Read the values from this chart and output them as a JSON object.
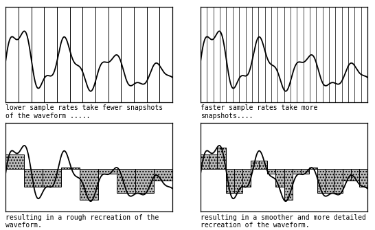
{
  "fig_width": 5.46,
  "fig_height": 3.35,
  "dpi": 100,
  "bg_color": "#ffffff",
  "border_color": "#000000",
  "wave_color": "#000000",
  "bar_facecolor": "#bbbbbb",
  "bar_edgecolor": "#000000",
  "vline_color": "#000000",
  "text_color": "#000000",
  "captions": [
    "lower sample rates take fewer snapshots\nof the waveform .....",
    "faster sample rates take more\nsnapshots....",
    "resulting in a rough recreation of the\nwaveform.",
    "resulting in a smoother and more detailed\nrecreation of the waveform."
  ],
  "n_vlines_low": 13,
  "n_vlines_high": 26,
  "n_samp_low": 9,
  "n_samp_high": 20,
  "font_size": 7.0,
  "caption_font": "monospace"
}
